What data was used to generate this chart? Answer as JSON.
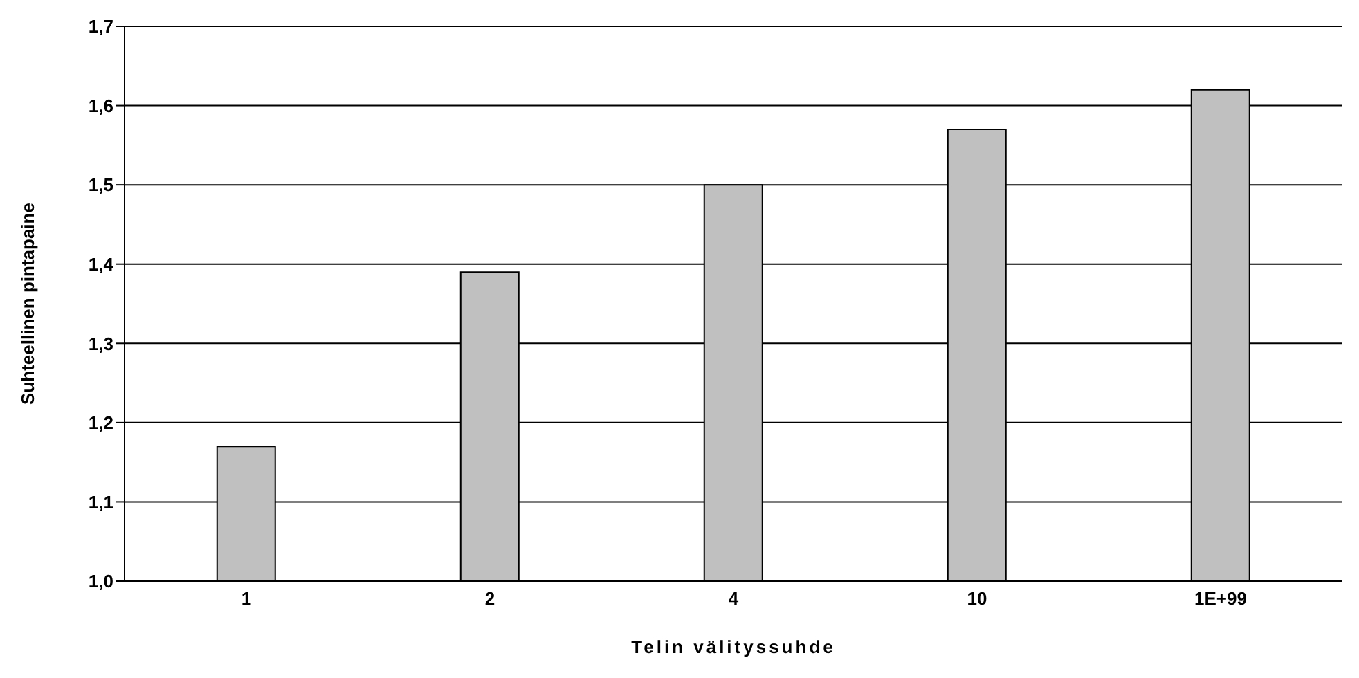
{
  "chart_data": {
    "type": "bar",
    "xlabel": "Telin välityssuhde",
    "ylabel": "Suhteellinen pintapaine",
    "categories": [
      "1",
      "2",
      "4",
      "10",
      "1E+99"
    ],
    "values": [
      1.17,
      1.39,
      1.5,
      1.57,
      1.62
    ],
    "color": "#c0c0c0",
    "ylim": [
      1.0,
      1.7
    ],
    "yticks": [
      {
        "value": 1.0,
        "label": "1,0"
      },
      {
        "value": 1.1,
        "label": "1,1"
      },
      {
        "value": 1.2,
        "label": "1,2"
      },
      {
        "value": 1.3,
        "label": "1,3"
      },
      {
        "value": 1.4,
        "label": "1,4"
      },
      {
        "value": 1.5,
        "label": "1,5"
      },
      {
        "value": 1.6,
        "label": "1,6"
      },
      {
        "value": 1.7,
        "label": "1,7"
      }
    ],
    "grid": "y"
  }
}
